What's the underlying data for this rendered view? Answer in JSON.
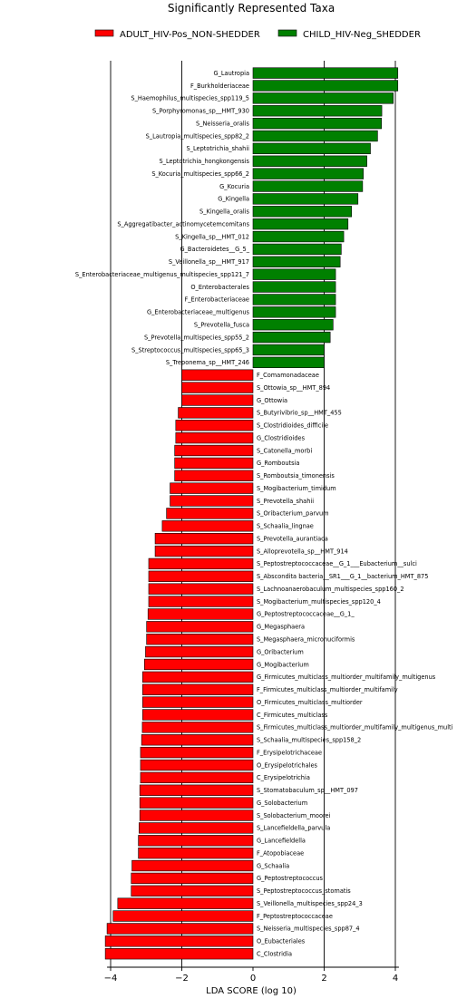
{
  "chart_data": {
    "type": "bar",
    "orientation": "horizontal",
    "title": "Significantly Represented Taxa",
    "xlabel": "LDA SCORE (log 10)",
    "ylabel": "",
    "xlim": [
      -4.1,
      4.1
    ],
    "xticks": [
      -4,
      -2,
      0,
      2,
      4
    ],
    "xtick_labels": [
      "−4",
      "−2",
      "0",
      "2",
      "4"
    ],
    "vertical_grid_at": [
      -4,
      -2,
      2,
      4
    ],
    "legend_position": "top",
    "series": [
      {
        "name": "ADULT_HIV-Pos_NON-SHEDDER",
        "color": "#ff0000",
        "categories": [
          "F_Comamonadaceae",
          "S_Ottowia_sp__HMT_894",
          "G_Ottowia",
          "S_Butyrivibrio_sp__HMT_455",
          "S_Clostridioides_difficile",
          "G_Clostridioides",
          "S_Catonella_morbi",
          "G_Romboutsia",
          "S_Romboutsia_timonensis",
          "S_Mogibacterium_timidum",
          "S_Prevotella_shahii",
          "S_Oribacterium_parvum",
          "S_Schaalia_lingnae",
          "S_Prevotella_aurantiaca",
          "S_Alloprevotella_sp__HMT_914",
          "S_Peptostreptococcaceae__G_1___Eubacterium__sulci",
          "S_Abscondita bacteria__SR1___G_1__bacterium_HMT_875",
          "S_Lachnoanaerobaculum_multispecies_spp160_2",
          "S_Mogibacterium_multispecies_spp120_4",
          "G_Peptostreptococcaceae__G_1_",
          "G_Megasphaera",
          "S_Megasphaera_micronuciformis",
          "G_Oribacterium",
          "G_Mogibacterium",
          "G_Firmicutes_multiclass_multiorder_multifamily_multigenus",
          "F_Firmicutes_multiclass_multiorder_multifamily",
          "O_Firmicutes_multiclass_multiorder",
          "C_Firmicutes_multiclass",
          "S_Firmicutes_multiclass_multiorder_multifamily_multigenus_multi",
          "S_Schaalia_multispecies_spp158_2",
          "F_Erysipelotrichaceae",
          "O_Erysipelotrichales",
          "C_Erysipelotrichia",
          "S_Stomatobaculum_sp__HMT_097",
          "G_Solobacterium",
          "S_Solobacterium_moorei",
          "S_Lancefieldella_parvula",
          "G_Lancefieldella",
          "F_Atopobiaceae",
          "G_Schaalia",
          "G_Peptostreptococcus",
          "S_Peptostreptococcus_stomatis",
          "S_Veillonella_multispecies_spp24_3",
          "F_Peptostreptococcaceae",
          "S_Neisseria_multispecies_spp87_4",
          "O_Eubacteriales",
          "C_Clostridia"
        ],
        "values": [
          -2.0,
          -2.0,
          -2.0,
          -2.1,
          -2.17,
          -2.17,
          -2.2,
          -2.2,
          -2.2,
          -2.33,
          -2.33,
          -2.43,
          -2.55,
          -2.75,
          -2.75,
          -2.93,
          -2.93,
          -2.93,
          -2.93,
          -2.95,
          -2.99,
          -2.99,
          -3.02,
          -3.05,
          -3.1,
          -3.1,
          -3.1,
          -3.1,
          -3.11,
          -3.13,
          -3.16,
          -3.16,
          -3.16,
          -3.18,
          -3.18,
          -3.18,
          -3.2,
          -3.22,
          -3.22,
          -3.4,
          -3.42,
          -3.42,
          -3.8,
          -3.93,
          -4.1,
          -4.15,
          -4.15
        ]
      },
      {
        "name": "CHILD_HIV-Neg_SHEDDER",
        "color": "#008000",
        "categories": [
          "G_Lautropia",
          "F_Burkholderiaceae",
          "S_Haemophilus_multispecies_spp119_5",
          "S_Porphyromonas_sp__HMT_930",
          "S_Neisseria_oralis",
          "S_Lautropia_multispecies_spp82_2",
          "S_Leptotrichia_shahii",
          "S_Leptotrichia_hongkongensis",
          "S_Kocuria_multispecies_spp66_2",
          "G_Kocuria",
          "G_Kingella",
          "S_Kingella_oralis",
          "S_Aggregatibacter_actinomycetemcomitans",
          "S_Kingella_sp__HMT_012",
          "G_Bacteroidetes__G_5_",
          "S_Veillonella_sp__HMT_917",
          "S_Enterobacteriaceae_multigenus_multispecies_spp121_7",
          "O_Enterobacterales",
          "F_Enterobacteriaceae",
          "G_Enterobacteriaceae_multigenus",
          "S_Prevotella_fusca",
          "S_Prevotella_multispecies_spp55_2",
          "S_Streptococcus_multispecies_spp65_3",
          "S_Treponema_sp__HMT_246"
        ],
        "values": [
          4.07,
          4.07,
          3.94,
          3.62,
          3.61,
          3.5,
          3.3,
          3.2,
          3.1,
          3.08,
          2.95,
          2.77,
          2.67,
          2.55,
          2.48,
          2.45,
          2.32,
          2.32,
          2.32,
          2.32,
          2.25,
          2.17,
          2.0,
          2.0
        ]
      }
    ]
  }
}
